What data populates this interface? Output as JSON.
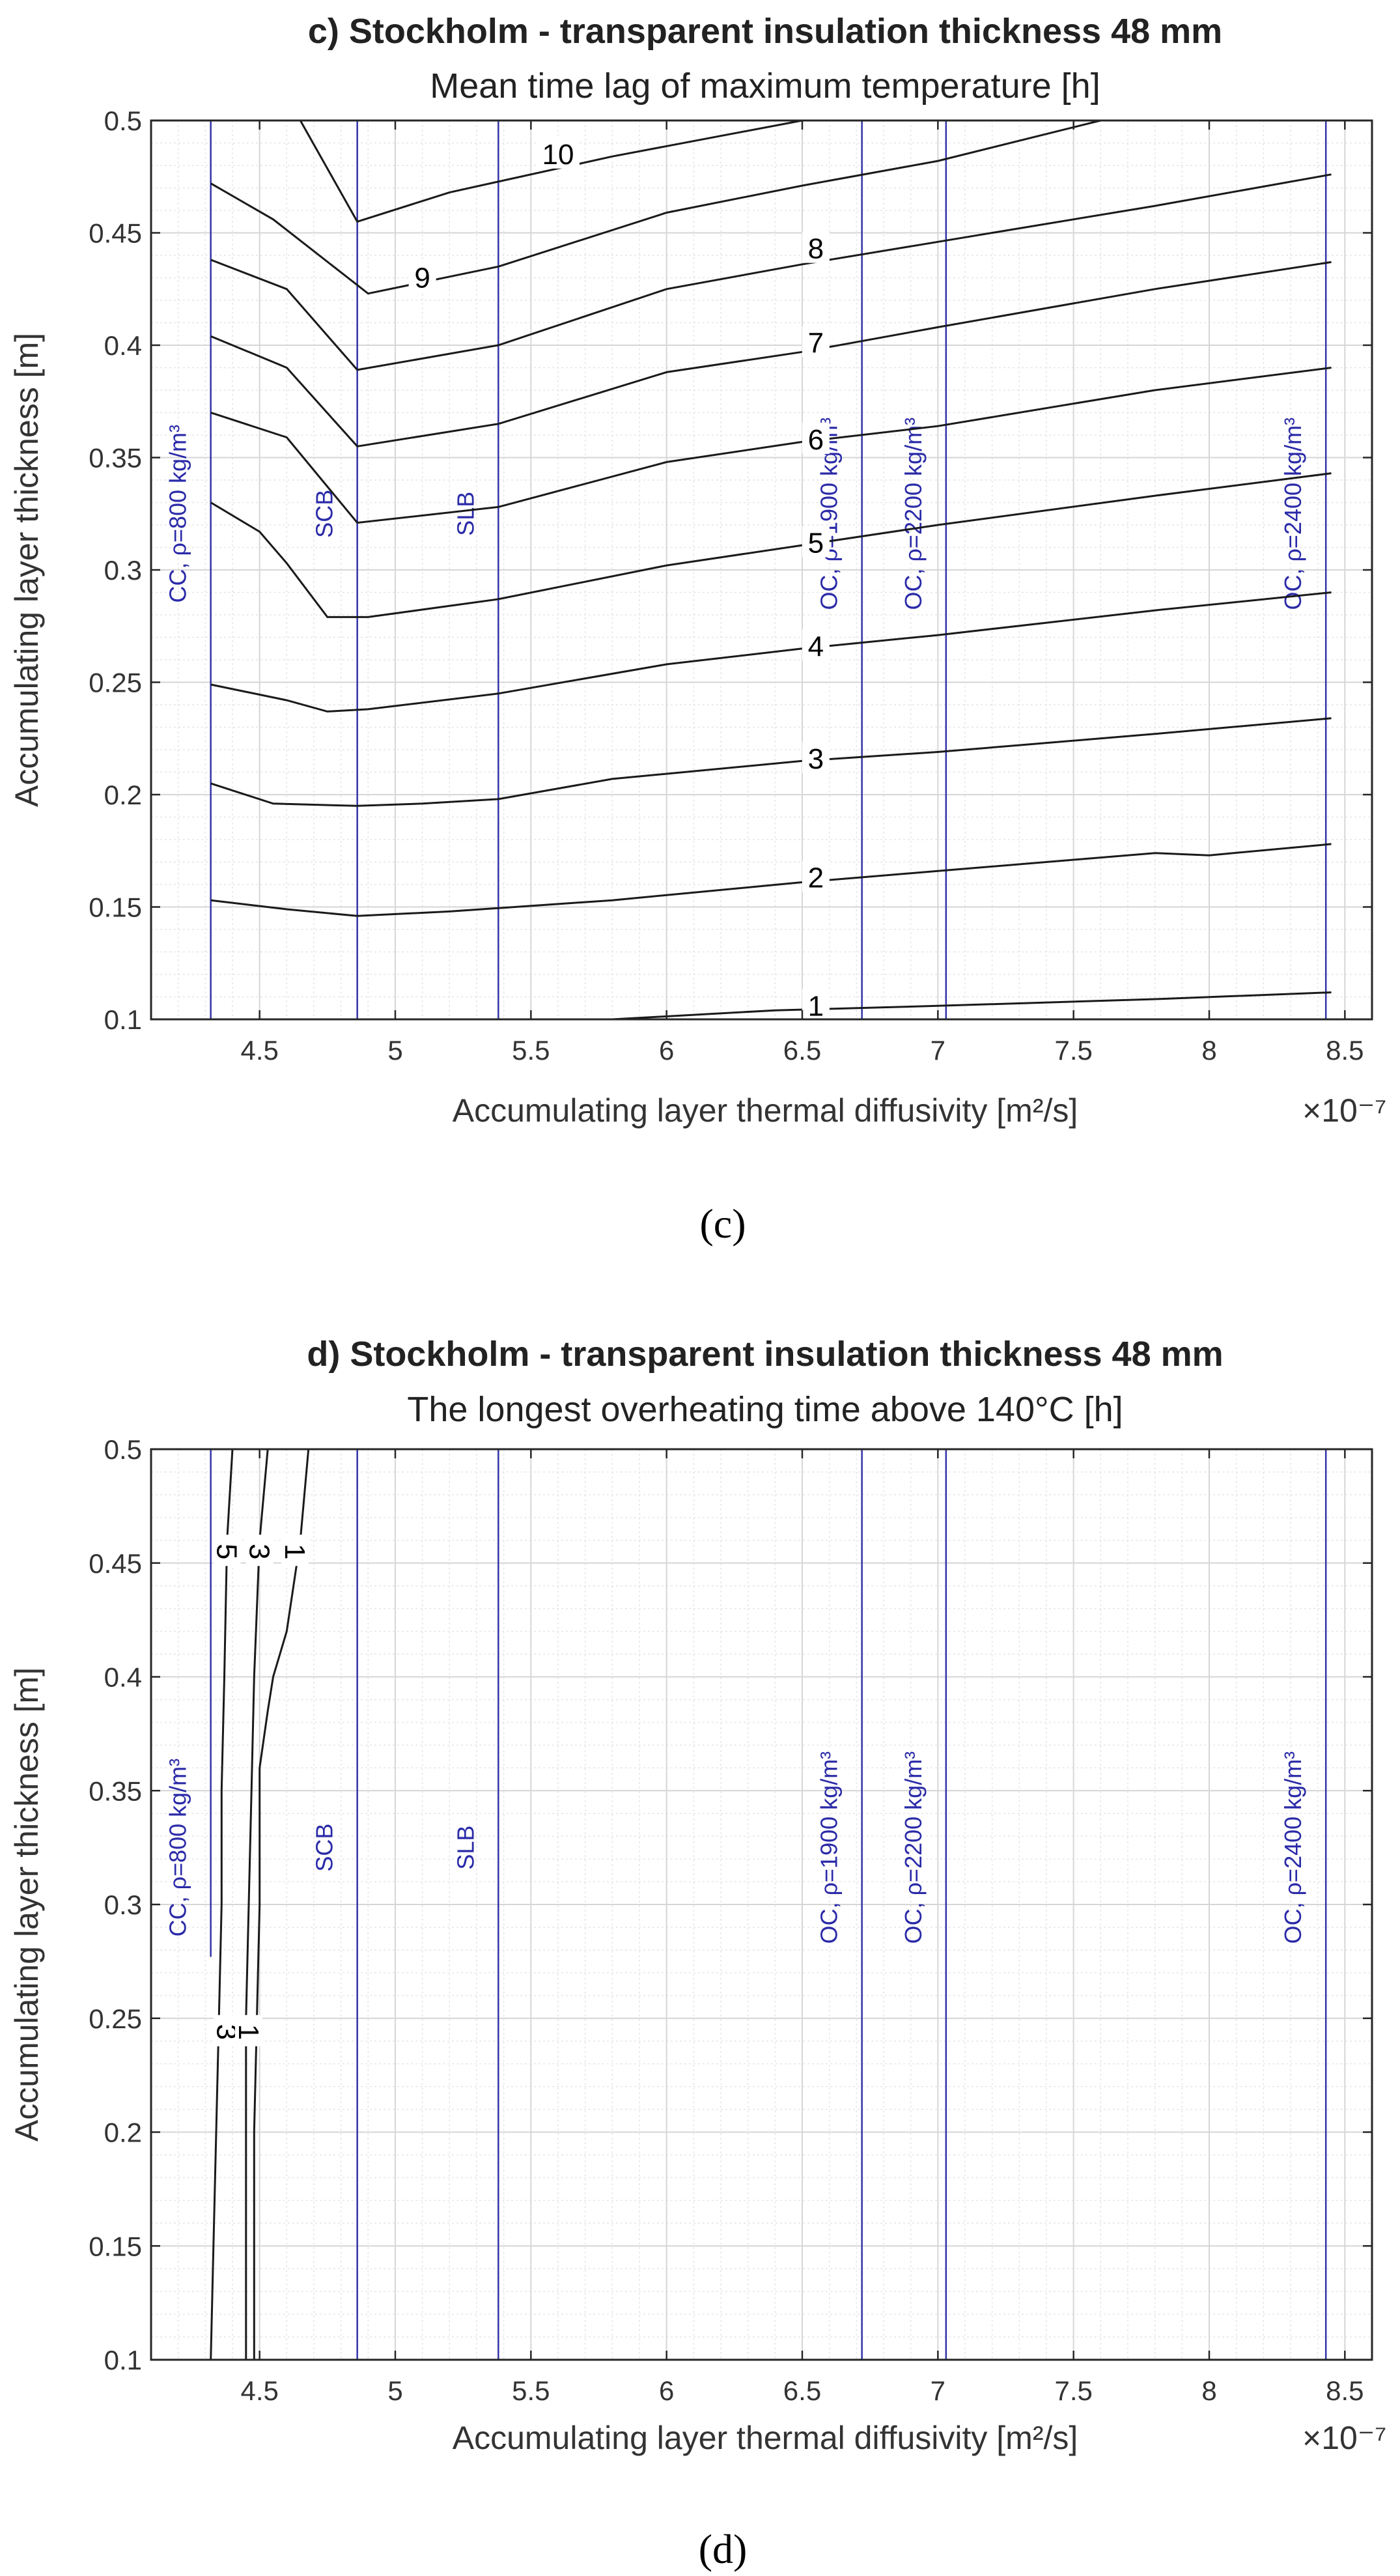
{
  "chart_data": [
    {
      "type": "contour",
      "panel": "c",
      "title": "c) Stockholm - transparent insulation thickness 48 mm",
      "subtitle": "Mean time lag of maximum temperature [h]",
      "xlabel": "Accumulating layer thermal diffusivity [m²/s]",
      "x_multiplier": "×10⁻⁷",
      "ylabel": "Accumulating layer thickness [m]",
      "caption": "(c)",
      "xlim": [
        4.1,
        8.6
      ],
      "ylim": [
        0.1,
        0.5
      ],
      "xticks": [
        "4.5",
        "5",
        "5.5",
        "6",
        "6.5",
        "7",
        "7.5",
        "8",
        "8.5"
      ],
      "yticks": [
        "0.1",
        "0.15",
        "0.2",
        "0.25",
        "0.3",
        "0.35",
        "0.4",
        "0.45",
        "0.5"
      ],
      "materials": [
        {
          "label": "CC, ρ=800 kg/m³",
          "x": 4.32,
          "y_from": 0.1,
          "y_to": 0.5
        },
        {
          "label": "SCB",
          "x": 4.86,
          "y_from": 0.1,
          "y_to": 0.5
        },
        {
          "label": "SLB",
          "x": 5.38,
          "y_from": 0.1,
          "y_to": 0.5
        },
        {
          "label": "OC, ρ=1900 kg/m³",
          "x": 6.72,
          "y_from": 0.1,
          "y_to": 0.5
        },
        {
          "label": "OC, ρ=2200 kg/m³",
          "x": 7.03,
          "y_from": 0.1,
          "y_to": 0.5
        },
        {
          "label": "OC, ρ=2400 kg/m³",
          "x": 8.43,
          "y_from": 0.1,
          "y_to": 0.5
        }
      ],
      "contours": [
        {
          "level": "1",
          "points": [
            [
              5.8,
              0.1
            ],
            [
              6.4,
              0.104
            ],
            [
              7.0,
              0.106
            ],
            [
              7.8,
              0.109
            ],
            [
              8.45,
              0.112
            ]
          ],
          "label_at": [
            6.55,
            0.106
          ]
        },
        {
          "level": "2",
          "points": [
            [
              4.32,
              0.153
            ],
            [
              4.6,
              0.149
            ],
            [
              4.86,
              0.146
            ],
            [
              5.2,
              0.148
            ],
            [
              5.8,
              0.153
            ],
            [
              6.5,
              0.161
            ],
            [
              7.0,
              0.166
            ],
            [
              7.8,
              0.174
            ],
            [
              8.0,
              0.173
            ],
            [
              8.45,
              0.178
            ]
          ],
          "label_at": [
            6.55,
            0.163
          ]
        },
        {
          "level": "3",
          "points": [
            [
              4.32,
              0.205
            ],
            [
              4.55,
              0.196
            ],
            [
              4.86,
              0.195
            ],
            [
              5.1,
              0.196
            ],
            [
              5.38,
              0.198
            ],
            [
              5.8,
              0.207
            ],
            [
              6.5,
              0.215
            ],
            [
              7.0,
              0.219
            ],
            [
              7.8,
              0.227
            ],
            [
              8.45,
              0.234
            ]
          ],
          "label_at": [
            6.55,
            0.216
          ]
        },
        {
          "level": "4",
          "points": [
            [
              4.32,
              0.249
            ],
            [
              4.6,
              0.242
            ],
            [
              4.75,
              0.237
            ],
            [
              4.9,
              0.238
            ],
            [
              5.38,
              0.245
            ],
            [
              6.0,
              0.258
            ],
            [
              6.5,
              0.265
            ],
            [
              7.0,
              0.271
            ],
            [
              7.8,
              0.282
            ],
            [
              8.45,
              0.29
            ]
          ],
          "label_at": [
            6.55,
            0.266
          ]
        },
        {
          "level": "5",
          "points": [
            [
              4.32,
              0.33
            ],
            [
              4.5,
              0.317
            ],
            [
              4.6,
              0.303
            ],
            [
              4.75,
              0.279
            ],
            [
              4.9,
              0.279
            ],
            [
              5.38,
              0.287
            ],
            [
              6.0,
              0.302
            ],
            [
              6.5,
              0.311
            ],
            [
              7.0,
              0.32
            ],
            [
              7.8,
              0.333
            ],
            [
              8.45,
              0.343
            ]
          ],
          "label_at": [
            6.55,
            0.312
          ]
        },
        {
          "level": "6",
          "points": [
            [
              4.32,
              0.37
            ],
            [
              4.6,
              0.359
            ],
            [
              4.86,
              0.321
            ],
            [
              5.38,
              0.328
            ],
            [
              6.0,
              0.348
            ],
            [
              6.5,
              0.357
            ],
            [
              7.0,
              0.364
            ],
            [
              7.8,
              0.38
            ],
            [
              8.45,
              0.39
            ]
          ],
          "label_at": [
            6.55,
            0.358
          ]
        },
        {
          "level": "7",
          "points": [
            [
              4.32,
              0.404
            ],
            [
              4.6,
              0.39
            ],
            [
              4.86,
              0.355
            ],
            [
              5.38,
              0.365
            ],
            [
              6.0,
              0.388
            ],
            [
              6.5,
              0.397
            ],
            [
              7.0,
              0.408
            ],
            [
              7.8,
              0.425
            ],
            [
              8.45,
              0.437
            ]
          ],
          "label_at": [
            6.55,
            0.401
          ]
        },
        {
          "level": "8",
          "points": [
            [
              4.32,
              0.438
            ],
            [
              4.6,
              0.425
            ],
            [
              4.86,
              0.389
            ],
            [
              5.38,
              0.4
            ],
            [
              6.0,
              0.425
            ],
            [
              6.5,
              0.436
            ],
            [
              7.0,
              0.446
            ],
            [
              7.8,
              0.462
            ],
            [
              8.45,
              0.476
            ]
          ],
          "label_at": [
            6.55,
            0.443
          ]
        },
        {
          "level": "9",
          "points": [
            [
              4.32,
              0.472
            ],
            [
              4.55,
              0.456
            ],
            [
              4.9,
              0.423
            ],
            [
              5.38,
              0.435
            ],
            [
              6.0,
              0.459
            ],
            [
              6.5,
              0.471
            ],
            [
              7.0,
              0.482
            ],
            [
              7.6,
              0.5
            ]
          ],
          "label_at": [
            5.1,
            0.43
          ]
        },
        {
          "level": "10",
          "points": [
            [
              4.65,
              0.5
            ],
            [
              4.86,
              0.455
            ],
            [
              5.2,
              0.468
            ],
            [
              5.8,
              0.484
            ],
            [
              6.5,
              0.5
            ]
          ],
          "label_at": [
            5.6,
            0.485
          ]
        }
      ]
    },
    {
      "type": "contour",
      "panel": "d",
      "title": "d) Stockholm - transparent insulation thickness 48 mm",
      "subtitle": "The longest overheating time above 140°C [h]",
      "xlabel": "Accumulating layer thermal diffusivity [m²/s]",
      "x_multiplier": "×10⁻⁷",
      "ylabel": "Accumulating layer thickness [m]",
      "caption": "(d)",
      "xlim": [
        4.1,
        8.6
      ],
      "ylim": [
        0.1,
        0.5
      ],
      "xticks": [
        "4.5",
        "5",
        "5.5",
        "6",
        "6.5",
        "7",
        "7.5",
        "8",
        "8.5"
      ],
      "yticks": [
        "0.1",
        "0.15",
        "0.2",
        "0.25",
        "0.3",
        "0.35",
        "0.4",
        "0.45",
        "0.5"
      ],
      "materials": [
        {
          "label": "CC, ρ=800 kg/m³",
          "x": 4.32,
          "y_from": 0.277,
          "y_to": 0.5
        },
        {
          "label": "SCB",
          "x": 4.86,
          "y_from": 0.1,
          "y_to": 0.5
        },
        {
          "label": "SLB",
          "x": 5.38,
          "y_from": 0.1,
          "y_to": 0.5
        },
        {
          "label": "OC, ρ=1900 kg/m³",
          "x": 6.72,
          "y_from": 0.1,
          "y_to": 0.5
        },
        {
          "label": "OC, ρ=2200 kg/m³",
          "x": 7.03,
          "y_from": 0.1,
          "y_to": 0.5
        },
        {
          "label": "OC, ρ=2400 kg/m³",
          "x": 8.43,
          "y_from": 0.1,
          "y_to": 0.5
        }
      ],
      "contours": [
        {
          "level": "5",
          "points": [
            [
              4.4,
              0.5
            ],
            [
              4.38,
              0.46
            ],
            [
              4.37,
              0.4
            ],
            [
              4.36,
              0.35
            ],
            [
              4.36,
              0.3
            ],
            [
              4.35,
              0.25
            ],
            [
              4.34,
              0.2
            ],
            [
              4.33,
              0.15
            ],
            [
              4.32,
              0.1
            ]
          ],
          "label_at": [
            4.38,
            0.455
          ]
        },
        {
          "level": "3",
          "points": [
            [
              4.53,
              0.5
            ],
            [
              4.5,
              0.46
            ],
            [
              4.48,
              0.4
            ],
            [
              4.47,
              0.35
            ],
            [
              4.46,
              0.3
            ],
            [
              4.45,
              0.25
            ],
            [
              4.45,
              0.2
            ],
            [
              4.45,
              0.15
            ],
            [
              4.45,
              0.1
            ]
          ],
          "label_at": [
            4.5,
            0.455
          ]
        },
        {
          "level": "1",
          "points": [
            [
              4.68,
              0.5
            ],
            [
              4.65,
              0.46
            ],
            [
              4.6,
              0.42
            ],
            [
              4.55,
              0.4
            ],
            [
              4.53,
              0.385
            ],
            [
              4.5,
              0.36
            ],
            [
              4.5,
              0.3
            ],
            [
              4.49,
              0.25
            ],
            [
              4.48,
              0.2
            ],
            [
              4.48,
              0.15
            ],
            [
              4.48,
              0.1
            ]
          ],
          "label_at": [
            4.63,
            0.455
          ]
        },
        {
          "level": "3",
          "points": [],
          "label_at": [
            4.38,
            0.244
          ]
        },
        {
          "level": "1",
          "points": [],
          "label_at": [
            4.46,
            0.244
          ]
        }
      ]
    }
  ]
}
